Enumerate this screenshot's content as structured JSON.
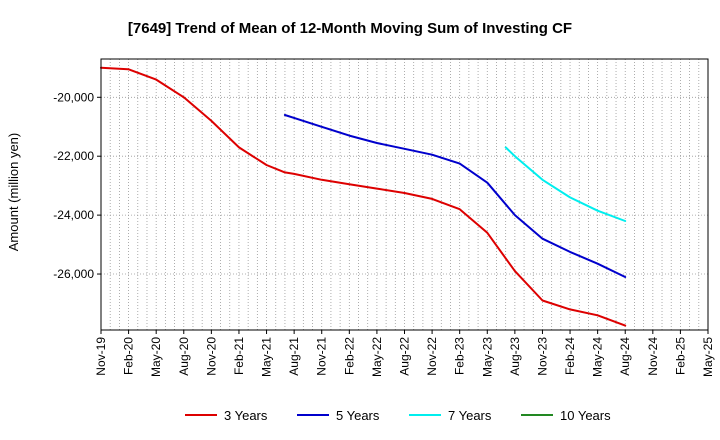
{
  "chart_data": {
    "type": "line",
    "title": "[7649]  Trend of Mean of 12-Month Moving Sum of Investing CF",
    "xlabel": "",
    "ylabel": "Amount (million yen)",
    "ylim": [
      -27900,
      -18700
    ],
    "yticks": [
      -20000,
      -22000,
      -24000,
      -26000
    ],
    "ytick_labels": [
      "-20,000",
      "-22,000",
      "-24,000",
      "-26,000"
    ],
    "xlim": [
      0,
      66
    ],
    "xticks": [
      0,
      3,
      6,
      9,
      12,
      15,
      18,
      21,
      24,
      27,
      30,
      33,
      36,
      39,
      42,
      45,
      48,
      51,
      54,
      57,
      60,
      63,
      66
    ],
    "xtick_labels": [
      "Nov-19",
      "Feb-20",
      "May-20",
      "Aug-20",
      "Nov-20",
      "Feb-21",
      "May-21",
      "Aug-21",
      "Nov-21",
      "Feb-22",
      "May-22",
      "Aug-22",
      "Nov-22",
      "Feb-23",
      "May-23",
      "Aug-23",
      "Nov-23",
      "Feb-24",
      "May-24",
      "Aug-24",
      "Nov-24",
      "Feb-25",
      "May-25"
    ],
    "grid": true,
    "legend_position": "bottom",
    "series": [
      {
        "name": "3 Years",
        "color": "#dd0000",
        "points": [
          [
            0,
            -19000
          ],
          [
            3,
            -19050
          ],
          [
            6,
            -19400
          ],
          [
            9,
            -20000
          ],
          [
            12,
            -20800
          ],
          [
            15,
            -21700
          ],
          [
            18,
            -22300
          ],
          [
            20,
            -22550
          ],
          [
            21,
            -22600
          ],
          [
            24,
            -22800
          ],
          [
            27,
            -22950
          ],
          [
            30,
            -23100
          ],
          [
            33,
            -23250
          ],
          [
            36,
            -23450
          ],
          [
            39,
            -23800
          ],
          [
            42,
            -24600
          ],
          [
            45,
            -25900
          ],
          [
            48,
            -26900
          ],
          [
            51,
            -27200
          ],
          [
            54,
            -27400
          ],
          [
            57,
            -27750
          ]
        ]
      },
      {
        "name": "5 Years",
        "color": "#0000cc",
        "points": [
          [
            20,
            -20600
          ],
          [
            21,
            -20700
          ],
          [
            24,
            -21000
          ],
          [
            27,
            -21300
          ],
          [
            30,
            -21550
          ],
          [
            33,
            -21750
          ],
          [
            36,
            -21950
          ],
          [
            39,
            -22250
          ],
          [
            42,
            -22900
          ],
          [
            45,
            -24000
          ],
          [
            48,
            -24800
          ],
          [
            51,
            -25250
          ],
          [
            54,
            -25650
          ],
          [
            57,
            -26100
          ]
        ]
      },
      {
        "name": "7 Years",
        "color": "#00eeee",
        "points": [
          [
            44,
            -21700
          ],
          [
            45,
            -22000
          ],
          [
            48,
            -22800
          ],
          [
            51,
            -23400
          ],
          [
            54,
            -23850
          ],
          [
            57,
            -24200
          ]
        ]
      },
      {
        "name": "10 Years",
        "color": "#228822",
        "points": []
      }
    ]
  }
}
